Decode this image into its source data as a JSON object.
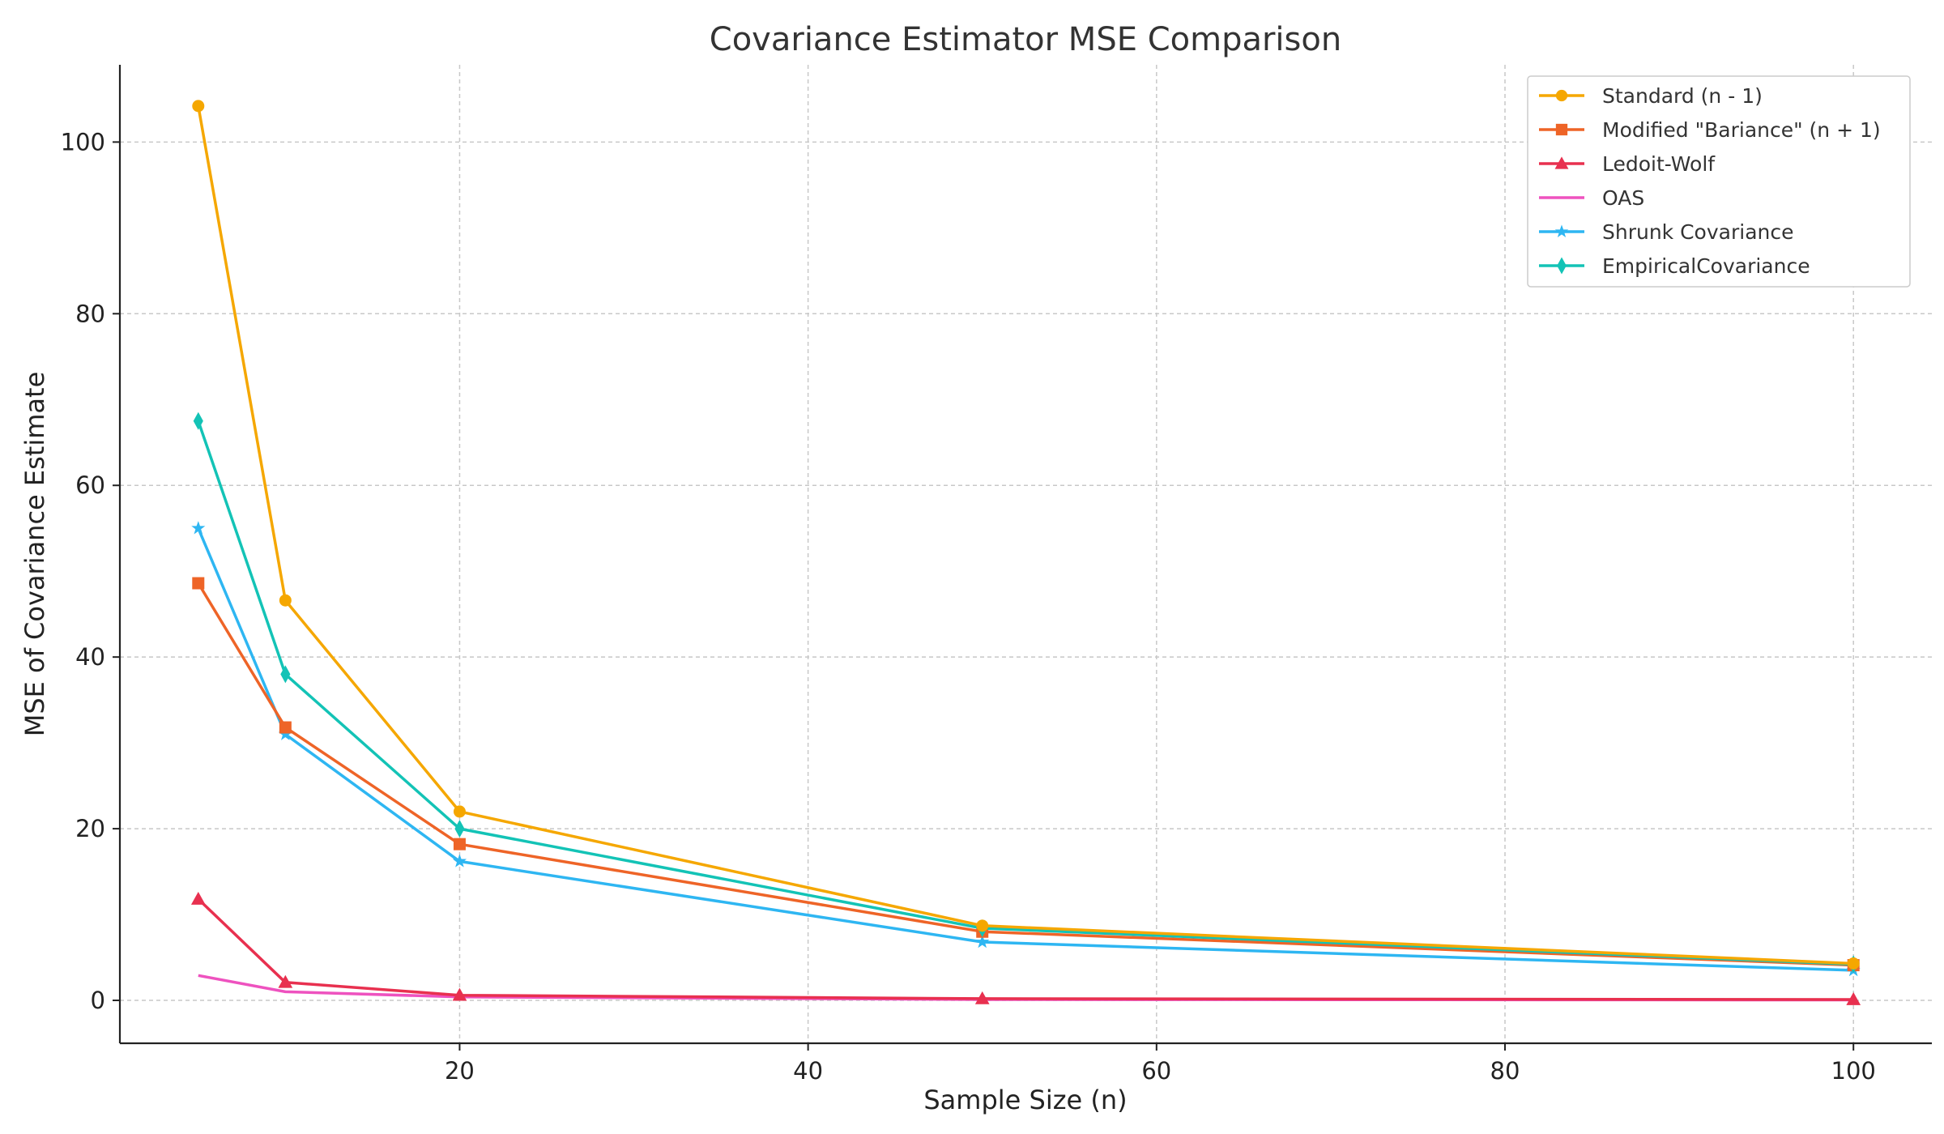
{
  "chart_data": {
    "type": "line",
    "title": "Covariance Estimator MSE Comparison",
    "xlabel": "Sample Size (n)",
    "ylabel": "MSE of Covariance Estimate",
    "xlim": [
      0.5,
      104.5
    ],
    "ylim": [
      -5,
      109
    ],
    "xticks": [
      20,
      40,
      60,
      80,
      100
    ],
    "yticks": [
      0,
      20,
      40,
      60,
      80,
      100
    ],
    "grid": true,
    "legend_position": "top-right",
    "x": [
      5,
      10,
      20,
      50,
      100
    ],
    "series": [
      {
        "name": "Standard (n - 1)",
        "color": "#F5A700",
        "marker": "circle",
        "values": [
          104.2,
          46.6,
          22.0,
          8.7,
          4.3
        ]
      },
      {
        "name": "Modified \"Bariance\" (n + 1)",
        "color": "#EE6427",
        "marker": "square",
        "values": [
          48.6,
          31.8,
          18.2,
          8.0,
          4.1
        ]
      },
      {
        "name": "Ledoit-Wolf",
        "color": "#E8304F",
        "marker": "triangle",
        "values": [
          11.8,
          2.1,
          0.6,
          0.2,
          0.1
        ]
      },
      {
        "name": "OAS",
        "color": "#EE52BF",
        "marker": "none",
        "values": [
          2.9,
          1.0,
          0.4,
          0.1,
          0.05
        ]
      },
      {
        "name": "Shrunk Covariance",
        "color": "#2EB6F2",
        "marker": "star",
        "values": [
          55.0,
          31.0,
          16.2,
          6.8,
          3.5
        ]
      },
      {
        "name": "EmpiricalCovariance",
        "color": "#13C3B6",
        "marker": "diamond",
        "values": [
          67.5,
          38.0,
          20.0,
          8.4,
          4.2
        ]
      }
    ]
  }
}
